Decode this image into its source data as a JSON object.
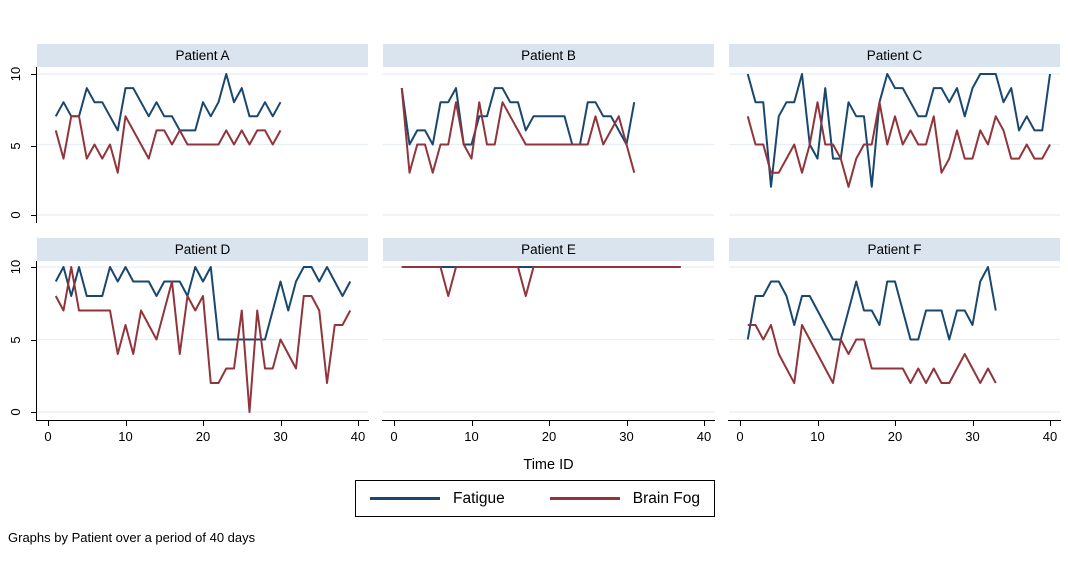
{
  "figure": {
    "xlabel": "Time ID",
    "x_ticks": [
      0,
      10,
      20,
      30,
      40
    ],
    "y_ticks": [
      "10",
      "5",
      "0"
    ],
    "note": "Graphs by Patient over a period of 40 days",
    "grid": true,
    "colors": {
      "fatigue": "#1a476f",
      "brain_fog": "#90353b",
      "title_band": "#d9e4ee",
      "gridline": "#e7eef4",
      "axis": "#000000"
    }
  },
  "legend": {
    "position": "bottom",
    "items": [
      {
        "label": "Fatigue",
        "color": "#1a476f"
      },
      {
        "label": "Brain Fog",
        "color": "#90353b"
      }
    ]
  },
  "chart_data": [
    {
      "type": "line",
      "title": "Patient A",
      "x_start": 1,
      "x_step": 1,
      "xlim": [
        0,
        41
      ],
      "ylim": [
        0,
        10
      ],
      "series": [
        {
          "name": "Fatigue",
          "color": "#1a476f",
          "values": [
            7,
            8,
            7,
            7,
            9,
            8,
            8,
            7,
            6,
            9,
            9,
            8,
            7,
            8,
            7,
            7,
            6,
            6,
            6,
            8,
            7,
            8,
            10,
            8,
            9,
            7,
            7,
            8,
            7,
            8
          ]
        },
        {
          "name": "Brain Fog",
          "color": "#90353b",
          "values": [
            6,
            4,
            7,
            7,
            4,
            5,
            4,
            5,
            3,
            7,
            6,
            5,
            4,
            6,
            6,
            5,
            6,
            5,
            5,
            5,
            5,
            5,
            6,
            5,
            6,
            5,
            6,
            6,
            5,
            6
          ]
        }
      ]
    },
    {
      "type": "line",
      "title": "Patient B",
      "x_start": 1,
      "x_step": 1,
      "xlim": [
        0,
        41
      ],
      "ylim": [
        0,
        10
      ],
      "series": [
        {
          "name": "Fatigue",
          "color": "#1a476f",
          "values": [
            9,
            5,
            6,
            6,
            5,
            8,
            8,
            9,
            5,
            5,
            7,
            7,
            9,
            9,
            8,
            8,
            6,
            7,
            7,
            7,
            7,
            7,
            5,
            5,
            8,
            8,
            7,
            7,
            6,
            5,
            8
          ]
        },
        {
          "name": "Brain Fog",
          "color": "#90353b",
          "values": [
            9,
            3,
            5,
            5,
            3,
            5,
            5,
            8,
            5,
            4,
            8,
            5,
            5,
            8,
            7,
            6,
            5,
            5,
            5,
            5,
            5,
            5,
            5,
            5,
            5,
            7,
            5,
            6,
            7,
            5,
            3
          ]
        }
      ]
    },
    {
      "type": "line",
      "title": "Patient C",
      "x_start": 1,
      "x_step": 1,
      "xlim": [
        0,
        41
      ],
      "ylim": [
        0,
        10
      ],
      "series": [
        {
          "name": "Fatigue",
          "color": "#1a476f",
          "values": [
            10,
            8,
            8,
            2,
            7,
            8,
            8,
            10,
            5,
            4,
            9,
            4,
            4,
            8,
            7,
            7,
            2,
            8,
            10,
            9,
            9,
            8,
            7,
            7,
            9,
            9,
            8,
            9,
            7,
            9,
            10,
            10,
            10,
            8,
            9,
            6,
            7,
            6,
            6,
            10
          ]
        },
        {
          "name": "Brain Fog",
          "color": "#90353b",
          "values": [
            7,
            5,
            5,
            3,
            3,
            4,
            5,
            3,
            5,
            8,
            5,
            5,
            4,
            2,
            4,
            5,
            5,
            8,
            5,
            7,
            5,
            6,
            5,
            5,
            7,
            3,
            4,
            6,
            4,
            4,
            6,
            5,
            7,
            6,
            4,
            4,
            5,
            4,
            4,
            5
          ]
        }
      ]
    },
    {
      "type": "line",
      "title": "Patient D",
      "x_start": 1,
      "x_step": 1,
      "xlim": [
        0,
        41
      ],
      "ylim": [
        0,
        10
      ],
      "series": [
        {
          "name": "Fatigue",
          "color": "#1a476f",
          "values": [
            9,
            10,
            8,
            10,
            8,
            8,
            8,
            10,
            9,
            10,
            9,
            9,
            9,
            8,
            9,
            9,
            9,
            8,
            10,
            9,
            10,
            5,
            5,
            5,
            5,
            5,
            5,
            5,
            7,
            9,
            7,
            9,
            10,
            10,
            9,
            10,
            9,
            8,
            9
          ]
        },
        {
          "name": "Brain Fog",
          "color": "#90353b",
          "values": [
            8,
            7,
            10,
            7,
            7,
            7,
            7,
            7,
            4,
            6,
            4,
            7,
            6,
            5,
            7,
            9,
            4,
            8,
            7,
            8,
            2,
            2,
            3,
            3,
            7,
            0,
            7,
            3,
            3,
            5,
            4,
            3,
            8,
            8,
            7,
            2,
            6,
            6,
            7
          ]
        }
      ]
    },
    {
      "type": "line",
      "title": "Patient E",
      "x_start": 1,
      "x_step": 1,
      "xlim": [
        0,
        41
      ],
      "ylim": [
        0,
        10
      ],
      "series": [
        {
          "name": "Fatigue",
          "color": "#1a476f",
          "values": [
            10,
            10,
            10,
            10,
            10,
            10,
            10,
            10,
            10,
            10,
            10,
            10,
            10,
            10,
            10,
            10,
            10,
            10,
            10,
            10,
            10,
            10,
            10,
            10,
            10,
            10,
            10,
            10,
            10,
            10,
            10,
            10,
            10,
            10,
            10,
            10,
            10
          ]
        },
        {
          "name": "Brain Fog",
          "color": "#90353b",
          "values": [
            10,
            10,
            10,
            10,
            10,
            10,
            8,
            10,
            10,
            10,
            10,
            10,
            10,
            10,
            10,
            10,
            8,
            10,
            10,
            10,
            10,
            10,
            10,
            10,
            10,
            10,
            10,
            10,
            10,
            10,
            10,
            10,
            10,
            10,
            10,
            10,
            10
          ]
        }
      ]
    },
    {
      "type": "line",
      "title": "Patient F",
      "x_start": 1,
      "x_step": 1,
      "xlim": [
        0,
        41
      ],
      "ylim": [
        0,
        10
      ],
      "series": [
        {
          "name": "Fatigue",
          "color": "#1a476f",
          "values": [
            5,
            8,
            8,
            9,
            9,
            8,
            6,
            8,
            8,
            7,
            6,
            5,
            5,
            7,
            9,
            7,
            7,
            6,
            9,
            9,
            7,
            5,
            5,
            7,
            7,
            7,
            5,
            7,
            7,
            6,
            9,
            10,
            7
          ]
        },
        {
          "name": "Brain Fog",
          "color": "#90353b",
          "values": [
            6,
            6,
            5,
            6,
            4,
            3,
            2,
            6,
            5,
            4,
            3,
            2,
            5,
            4,
            5,
            5,
            3,
            3,
            3,
            3,
            3,
            2,
            3,
            2,
            3,
            2,
            2,
            3,
            4,
            3,
            2,
            3,
            2
          ]
        }
      ]
    }
  ]
}
